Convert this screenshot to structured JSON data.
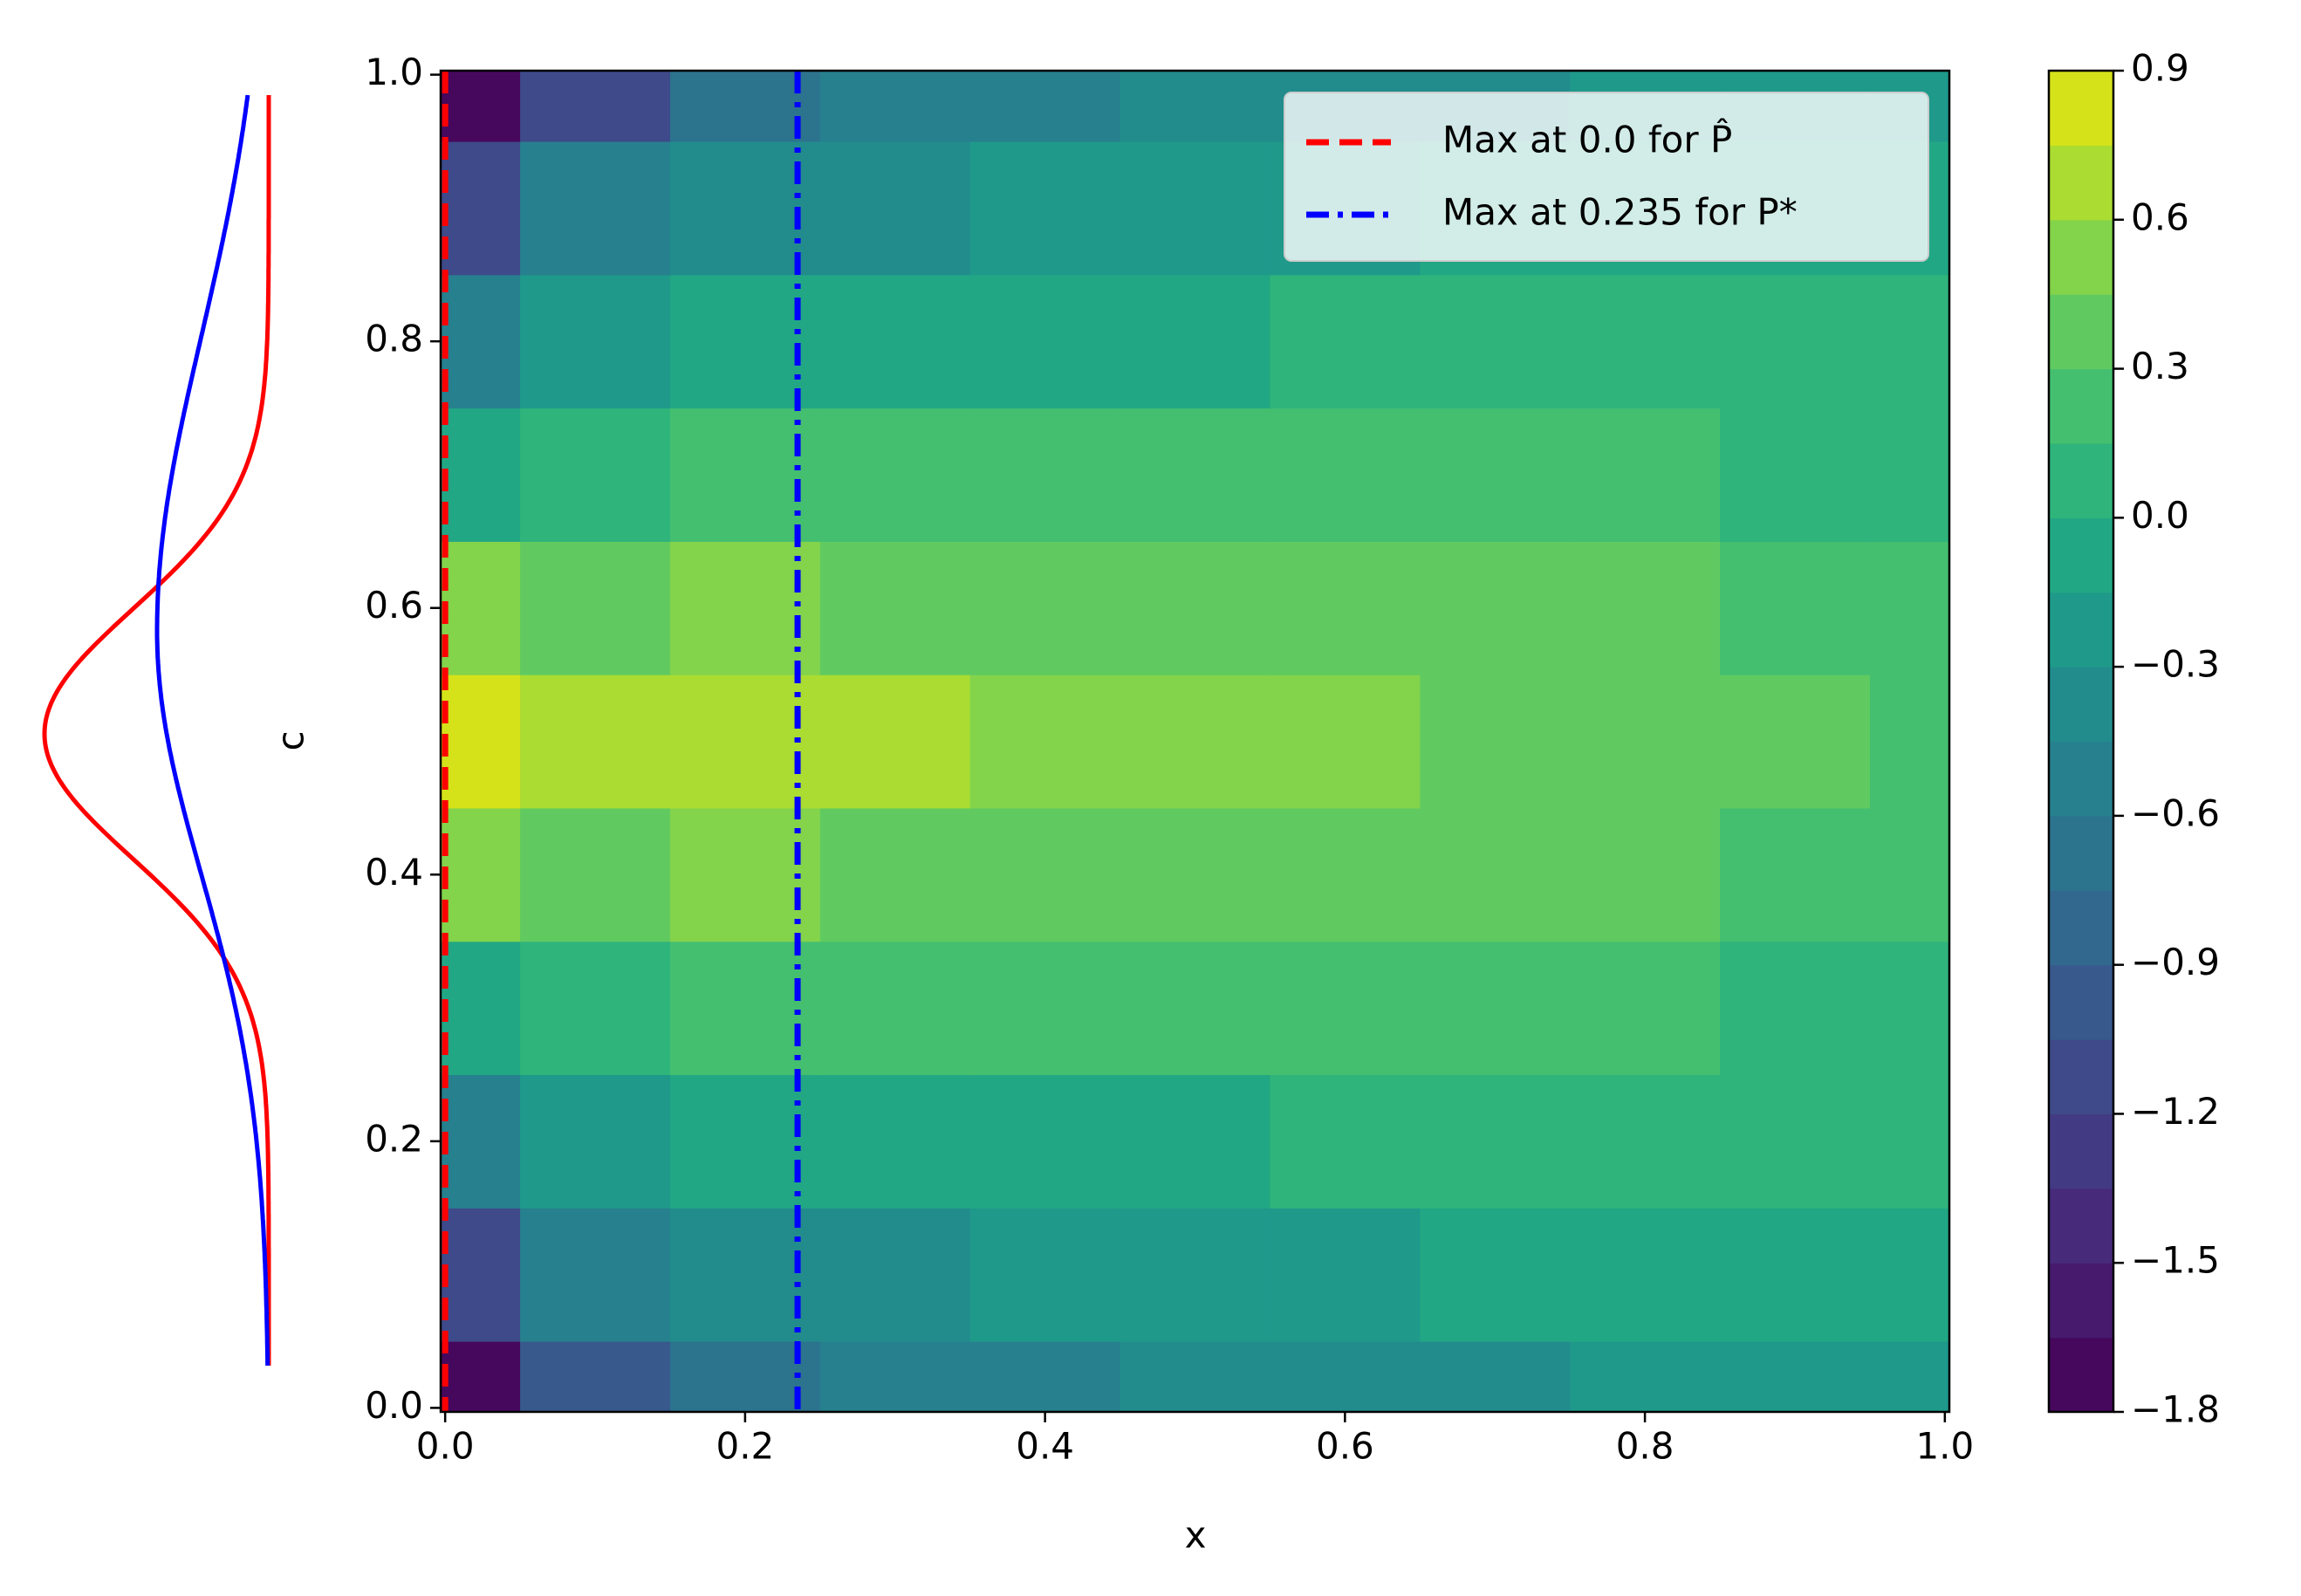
{
  "chart_data": {
    "type": "contour",
    "x_label": "x",
    "y_label": "c",
    "xlim": [
      -0.003,
      1.003
    ],
    "ylim": [
      -0.003,
      1.003
    ],
    "xticks": [
      {
        "value": 0,
        "label": "0.0"
      },
      0.2,
      0.4,
      0.6,
      0.8,
      {
        "value": 1,
        "label": "1.0"
      }
    ],
    "yticks": [
      {
        "value": 0,
        "label": "0.0"
      },
      0.2,
      0.4,
      0.6,
      0.8,
      {
        "value": 1,
        "label": "1.0"
      }
    ],
    "x": [
      0,
      0.1,
      0.2,
      0.3,
      0.4,
      0.5,
      0.6,
      0.7,
      0.8,
      0.9,
      1
    ],
    "y": [
      0,
      0.1,
      0.2,
      0.3,
      0.4,
      0.5,
      0.6,
      0.7,
      0.8,
      0.9,
      1
    ],
    "z": [
      [
        -1.75,
        -0.95,
        -0.75,
        -0.6,
        -0.5,
        -0.42,
        -0.38,
        -0.33,
        -0.3,
        -0.27,
        -0.25
      ],
      [
        -1.2,
        -0.6,
        -0.45,
        -0.35,
        -0.28,
        -0.22,
        -0.18,
        -0.15,
        -0.12,
        -0.1,
        -0.08
      ],
      [
        -0.6,
        -0.25,
        -0.15,
        -0.1,
        -0.05,
        -0.02,
        0,
        0,
        0,
        0,
        0
      ],
      [
        -0.05,
        0.1,
        0.15,
        0.17,
        0.18,
        0.18,
        0.17,
        0.16,
        0.15,
        0.13,
        0.12
      ],
      [
        0.45,
        0.42,
        0.45,
        0.43,
        0.42,
        0.4,
        0.38,
        0.35,
        0.32,
        0.28,
        0.25
      ],
      [
        0.85,
        0.72,
        0.65,
        0.6,
        0.56,
        0.52,
        0.47,
        0.42,
        0.37,
        0.33,
        0.28
      ],
      [
        0.45,
        0.42,
        0.45,
        0.43,
        0.42,
        0.4,
        0.38,
        0.35,
        0.32,
        0.28,
        0.25
      ],
      [
        -0.05,
        0.1,
        0.15,
        0.17,
        0.18,
        0.18,
        0.17,
        0.16,
        0.15,
        0.13,
        0.12
      ],
      [
        -0.6,
        -0.25,
        -0.15,
        -0.1,
        -0.05,
        -0.02,
        0,
        0,
        0,
        0,
        0
      ],
      [
        -1.2,
        -0.6,
        -0.45,
        -0.35,
        -0.28,
        -0.22,
        -0.18,
        -0.15,
        -0.12,
        -0.1,
        -0.08
      ],
      [
        -1.75,
        -1.1,
        -0.75,
        -0.6,
        -0.5,
        -0.42,
        -0.38,
        -0.33,
        -0.3,
        -0.27,
        -0.25
      ]
    ],
    "levels": [
      -1.8,
      -1.65,
      -1.5,
      -1.35,
      -1.2,
      -1.05,
      -0.9,
      -0.75,
      -0.6,
      -0.45,
      -0.3,
      -0.15,
      0,
      0.15,
      0.3,
      0.45,
      0.6,
      0.75,
      0.9
    ],
    "colors": [
      "#46085c",
      "#471a6e",
      "#472a7a",
      "#433a84",
      "#3e4a89",
      "#38598c",
      "#32678e",
      "#2c738e",
      "#27808e",
      "#228c8d",
      "#1f998a",
      "#22a785",
      "#2fb47c",
      "#44bf70",
      "#60ca60",
      "#83d34b",
      "#aadc32",
      "#d5e21a"
    ],
    "zlim": [
      -1.8,
      0.9
    ],
    "zticks": [
      {
        "value": -1.8,
        "label": "−1.8"
      },
      {
        "value": -1.5,
        "label": "−1.5"
      },
      {
        "value": -1.2,
        "label": "−1.2"
      },
      {
        "value": -0.9,
        "label": "−0.9"
      },
      {
        "value": -0.6,
        "label": "−0.6"
      },
      {
        "value": -0.3,
        "label": "−0.3"
      },
      {
        "value": 0,
        "label": "0.0"
      },
      0.3,
      0.6,
      0.9
    ],
    "vlines": [
      {
        "name": "Max at 0.0 for P̂",
        "x": 0.0,
        "color": "#ff0000",
        "dash": "26 12"
      },
      {
        "name": "Max at 0.235 for P*",
        "x": 0.235,
        "color": "#0000ff",
        "dash": "26 10 6 10"
      }
    ],
    "legend": "upper right"
  }
}
